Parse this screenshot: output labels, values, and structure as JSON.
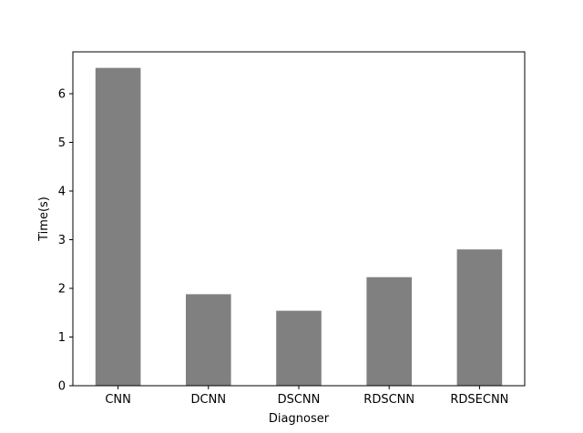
{
  "chart_data": {
    "type": "bar",
    "title": "",
    "xlabel": "Diagnoser",
    "ylabel": "Time(s)",
    "categories": [
      "CNN",
      "DCNN",
      "DSCNN",
      "RDSCNN",
      "RDSECNN"
    ],
    "values": [
      6.53,
      1.88,
      1.54,
      2.23,
      2.8
    ],
    "ylim": [
      0,
      6.86
    ],
    "yticks": [
      0,
      1,
      2,
      3,
      4,
      5,
      6
    ],
    "grid": false,
    "bar_color": "#808080"
  }
}
